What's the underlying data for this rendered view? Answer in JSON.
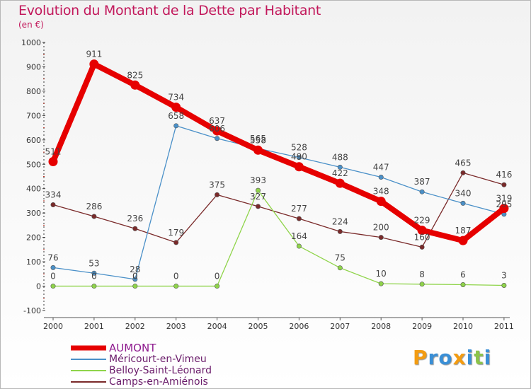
{
  "title": "Evolution du Montant de la Dette par Habitant",
  "subtitle": "(en €)",
  "logo_text": "Proxiti",
  "logo_colors": [
    "#f39c12",
    "#3a8fd6",
    "#3a8fd6",
    "#f39c12",
    "#3a8fd6",
    "#8bc34a",
    "#3a8fd6"
  ],
  "chart_data": {
    "type": "line",
    "title": "Evolution du Montant de la Dette par Habitant",
    "subtitle": "(en €)",
    "xlabel": "",
    "ylabel": "",
    "x": [
      "2000",
      "2001",
      "2002",
      "2003",
      "2004",
      "2005",
      "2006",
      "2007",
      "2008",
      "2009",
      "2010",
      "2011"
    ],
    "ylim": [
      -100,
      1000
    ],
    "yticks": [
      "1000",
      "900",
      "800",
      "700",
      "600",
      "500",
      "400",
      "300",
      "200",
      "100",
      "0",
      "-100"
    ],
    "grid": false,
    "legend_position": "bottom-left",
    "series": [
      {
        "name": "AUMONT",
        "color": "#e60000",
        "values": [
          511,
          911,
          825,
          734,
          637,
          558,
          490,
          422,
          348,
          229,
          187,
          319
        ],
        "labels": [
          "511",
          "911",
          "825",
          "734",
          "637",
          "558",
          "490",
          "422",
          "348",
          "229",
          "187",
          "319"
        ]
      },
      {
        "name": "Méricourt-en-Vimeu",
        "color": "#4a90c8",
        "values": [
          76,
          53,
          28,
          658,
          606,
          565,
          528,
          488,
          447,
          387,
          340,
          295
        ],
        "labels": [
          "76",
          "53",
          "28",
          "658",
          "606",
          "565",
          "528",
          "488",
          "447",
          "387",
          "340",
          "295"
        ]
      },
      {
        "name": "Belloy-Saint-Léonard",
        "color": "#8fd44a",
        "values": [
          0,
          0,
          0,
          0,
          0,
          393,
          164,
          75,
          10,
          8,
          6,
          3
        ],
        "labels": [
          "0",
          "0",
          "0",
          "0",
          "0",
          "393",
          "164",
          "75",
          "10",
          "8",
          "6",
          "3"
        ]
      },
      {
        "name": "Camps-en-Amiénois",
        "color": "#7a2a2a",
        "values": [
          334,
          286,
          236,
          179,
          375,
          327,
          277,
          224,
          200,
          160,
          465,
          416
        ],
        "labels": [
          "334",
          "286",
          "236",
          "179",
          "375",
          "327",
          "277",
          "224",
          "200",
          "160",
          "465",
          "416"
        ]
      }
    ]
  }
}
